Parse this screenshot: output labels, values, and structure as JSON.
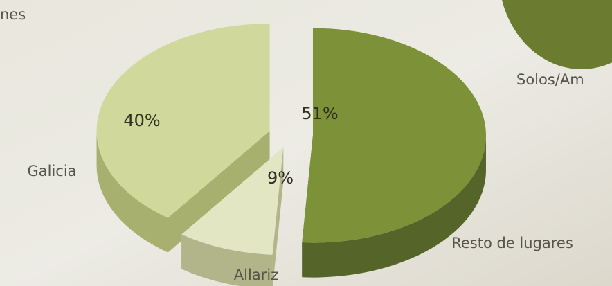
{
  "chart_data": {
    "type": "pie3d",
    "categories": [
      "Resto de lugares",
      "Allariz",
      "Galicia"
    ],
    "values": [
      51,
      9,
      40
    ],
    "value_labels": [
      "51%",
      "9%",
      "40%"
    ],
    "colors": [
      "#7d9138",
      "#e3e6c3",
      "#d1d89c"
    ],
    "side_colors": [
      "#55652a",
      "#b2b48a",
      "#a8b070"
    ]
  },
  "partial_labels": [
    "nes",
    "Solos/Am"
  ]
}
